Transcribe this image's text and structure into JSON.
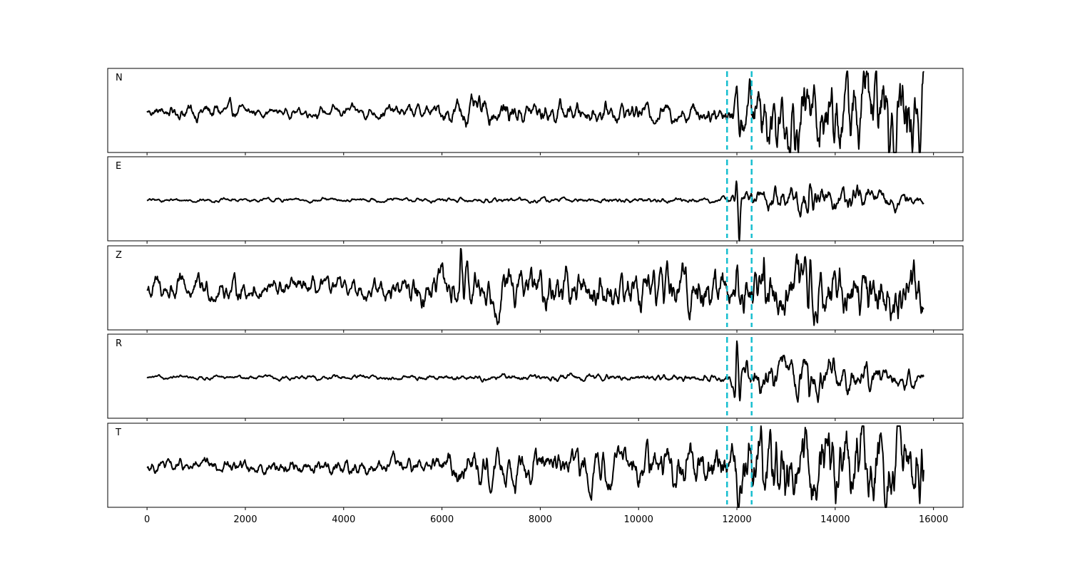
{
  "chart_data": {
    "type": "line",
    "title": "",
    "xlabel": "",
    "ylabel": "",
    "xlim": [
      -800,
      16600
    ],
    "sample_end": 15800,
    "grid": false,
    "legend": "none",
    "colors": {
      "trace": "#000000",
      "picks": "#17becf"
    },
    "xticks": [
      {
        "value": 0,
        "label": "0"
      },
      {
        "value": 2000,
        "label": "2000"
      },
      {
        "value": 4000,
        "label": "4000"
      },
      {
        "value": 6000,
        "label": "6000"
      },
      {
        "value": 8000,
        "label": "8000"
      },
      {
        "value": 10000,
        "label": "10000"
      },
      {
        "value": 12000,
        "label": "12000"
      },
      {
        "value": 14000,
        "label": "14000"
      },
      {
        "value": 16000,
        "label": "16000"
      }
    ],
    "picks": [
      11800,
      12300
    ],
    "channels": [
      {
        "name": "N",
        "noise": [
          [
            0,
            0.05
          ],
          [
            1200,
            0.11
          ],
          [
            2300,
            0.05
          ],
          [
            5800,
            0.08
          ],
          [
            6300,
            0.15
          ],
          [
            9000,
            0.11
          ],
          [
            11700,
            0.11
          ],
          [
            12400,
            0.38
          ],
          [
            15800,
            0.55
          ]
        ],
        "events": [
          {
            "x": 12000,
            "amp": 0.82
          },
          {
            "x": 12050,
            "amp": -0.45
          },
          {
            "x": 12800,
            "amp": -0.75
          },
          {
            "x": 14650,
            "amp": 0.62
          },
          {
            "x": 15100,
            "amp": -0.72
          }
        ]
      },
      {
        "name": "E",
        "noise": [
          [
            0,
            0.02
          ],
          [
            11700,
            0.03
          ],
          [
            12400,
            0.12
          ],
          [
            13400,
            0.18
          ],
          [
            15800,
            0.06
          ]
        ],
        "events": [
          {
            "x": 11990,
            "amp": 0.62
          },
          {
            "x": 12050,
            "amp": -0.95
          },
          {
            "x": 12200,
            "amp": 0.25
          },
          {
            "x": 13480,
            "amp": 0.62
          },
          {
            "x": 13540,
            "amp": -0.3
          }
        ]
      },
      {
        "name": "Z",
        "noise": [
          [
            0,
            0.16
          ],
          [
            2300,
            0.12
          ],
          [
            4200,
            0.1
          ],
          [
            6000,
            0.22
          ],
          [
            9000,
            0.22
          ],
          [
            11700,
            0.28
          ],
          [
            15800,
            0.32
          ]
        ],
        "events": [
          {
            "x": 6380,
            "amp": 0.82
          },
          {
            "x": 6450,
            "amp": -0.4
          },
          {
            "x": 12000,
            "amp": 0.6
          },
          {
            "x": 12550,
            "amp": 0.68
          },
          {
            "x": 13450,
            "amp": -0.78
          },
          {
            "x": 13500,
            "amp": 0.65
          }
        ]
      },
      {
        "name": "R",
        "noise": [
          [
            0,
            0.02
          ],
          [
            11700,
            0.04
          ],
          [
            12400,
            0.16
          ],
          [
            13400,
            0.22
          ],
          [
            15800,
            0.08
          ]
        ],
        "events": [
          {
            "x": 12000,
            "amp": 0.88
          },
          {
            "x": 11960,
            "amp": -0.3
          },
          {
            "x": 12060,
            "amp": -0.65
          },
          {
            "x": 12200,
            "amp": 0.25
          },
          {
            "x": 13470,
            "amp": -0.7
          },
          {
            "x": 13550,
            "amp": 0.28
          }
        ]
      },
      {
        "name": "T",
        "noise": [
          [
            0,
            0.07
          ],
          [
            5800,
            0.1
          ],
          [
            6300,
            0.2
          ],
          [
            9000,
            0.18
          ],
          [
            11700,
            0.25
          ],
          [
            12400,
            0.42
          ],
          [
            15800,
            0.48
          ]
        ],
        "events": [
          {
            "x": 12030,
            "amp": -0.88
          },
          {
            "x": 12800,
            "amp": 0.7
          },
          {
            "x": 14450,
            "amp": 0.62
          },
          {
            "x": 15250,
            "amp": 0.62
          }
        ]
      }
    ]
  }
}
